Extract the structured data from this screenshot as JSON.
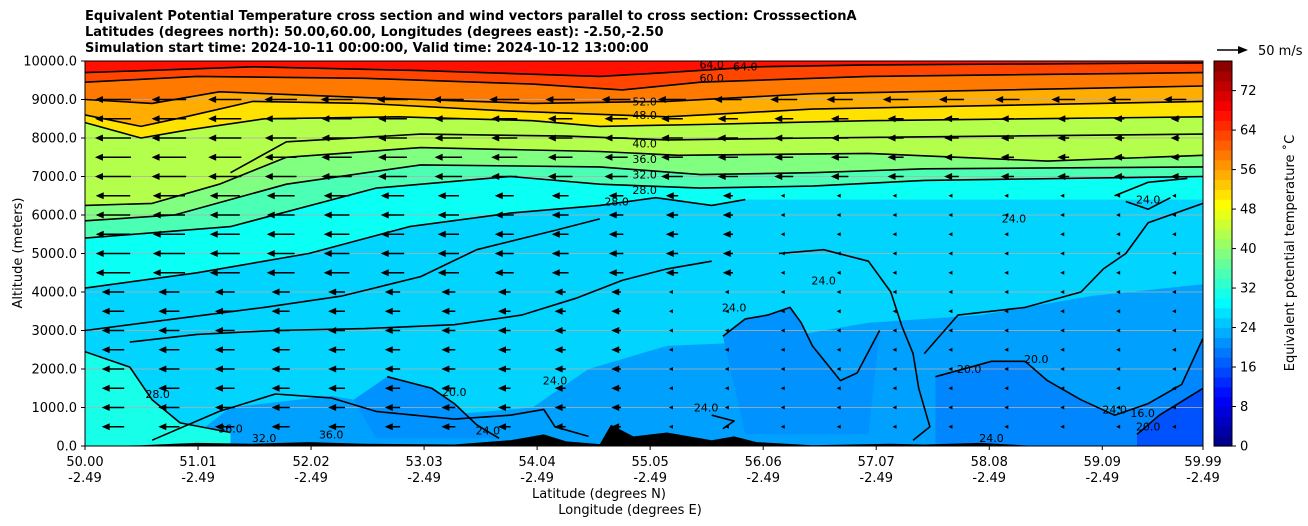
{
  "title_lines": [
    "Equivalent Potential Temperature cross section and wind vectors parallel to cross section: CrosssectionA",
    "Latitudes (degrees north): 50.00,60.00, Longitudes (degrees east): -2.50,-2.50",
    "Simulation start time: 2024-10-11 00:00:00, Valid time: 2024-10-12 13:00:00"
  ],
  "chart_data": {
    "type": "heatmap",
    "subtype": "filled contour cross-section with contour lines and wind vectors",
    "ylabel": "Altitude (meters)",
    "xlabel_lines": [
      "Latitude (degrees N)",
      "Longitude (degrees E)"
    ],
    "ylim": [
      0,
      10000
    ],
    "xlim": [
      50.0,
      59.99
    ],
    "y_ticks": [
      0,
      1000,
      2000,
      3000,
      4000,
      5000,
      6000,
      7000,
      8000,
      9000,
      10000
    ],
    "y_tick_labels": [
      "0.0",
      "1000.0",
      "2000.0",
      "3000.0",
      "4000.0",
      "5000.0",
      "6000.0",
      "7000.0",
      "8000.0",
      "9000.0",
      "10000.0"
    ],
    "x_ticks": [
      50.0,
      51.01,
      52.02,
      53.03,
      54.04,
      55.05,
      56.06,
      57.07,
      58.08,
      59.09,
      59.99
    ],
    "x_tick_labels": [
      "50.00",
      "51.01",
      "52.02",
      "53.03",
      "54.04",
      "55.05",
      "56.06",
      "57.07",
      "58.08",
      "59.09",
      "59.99"
    ],
    "x_tick_labels_lon": [
      "-2.49",
      "-2.49",
      "-2.49",
      "-2.49",
      "-2.49",
      "-2.49",
      "-2.49",
      "-2.49",
      "-2.49",
      "-2.49",
      "-2.49"
    ],
    "grid": "horizontal lines at y ticks",
    "colorbar": {
      "label": "Equivalent potential temperature ˚C",
      "min": 0,
      "max": 78,
      "ticks": [
        0,
        8,
        16,
        24,
        32,
        40,
        48,
        56,
        64,
        72
      ],
      "colormap": "jet"
    },
    "wind_key": {
      "label": "50 m/s",
      "value": 50
    },
    "contour_labels": [
      "64.0",
      "64.0",
      "60.0",
      "52.0",
      "48.0",
      "40.0",
      "36.0",
      "32.0",
      "28.0",
      "28.0",
      "28.0",
      "24.0",
      "24.0",
      "24.0",
      "24.0",
      "20.0",
      "20.0",
      "20.0",
      "24.0",
      "16.0",
      "24.0",
      "24.0",
      "36.0",
      "36.0",
      "32.0",
      "24.0",
      "24.0",
      "20.0"
    ],
    "contour_lines": [
      {
        "level": 64,
        "points": [
          [
            50,
            9.7
          ],
          [
            51.5,
            9.85
          ],
          [
            53,
            9.75
          ],
          [
            54.6,
            9.6
          ],
          [
            55.2,
            9.7
          ],
          [
            56,
            9.85
          ],
          [
            57,
            9.9
          ],
          [
            59.99,
            9.95
          ]
        ]
      },
      {
        "level": 60,
        "points": [
          [
            50,
            9.45
          ],
          [
            51,
            9.6
          ],
          [
            52.5,
            9.55
          ],
          [
            54,
            9.4
          ],
          [
            54.8,
            9.25
          ],
          [
            55.5,
            9.45
          ],
          [
            57,
            9.6
          ],
          [
            59.99,
            9.7
          ]
        ]
      },
      {
        "level": 56,
        "points": [
          [
            50,
            9.0
          ],
          [
            50.6,
            8.9
          ],
          [
            51.2,
            9.2
          ],
          [
            52.5,
            9.05
          ],
          [
            54,
            8.9
          ],
          [
            55.2,
            8.95
          ],
          [
            56.5,
            9.15
          ],
          [
            59.99,
            9.35
          ]
        ]
      },
      {
        "level": 52,
        "points": [
          [
            50,
            8.6
          ],
          [
            50.5,
            8.3
          ],
          [
            50.9,
            8.55
          ],
          [
            51.5,
            8.95
          ],
          [
            52.5,
            8.9
          ],
          [
            53.8,
            8.7
          ],
          [
            55.2,
            8.55
          ],
          [
            56.5,
            8.75
          ],
          [
            59.99,
            8.95
          ]
        ]
      },
      {
        "level": 48,
        "points": [
          [
            50,
            8.4
          ],
          [
            50.5,
            8.0
          ],
          [
            50.9,
            8.2
          ],
          [
            51.6,
            8.5
          ],
          [
            52.8,
            8.55
          ],
          [
            54,
            8.45
          ],
          [
            54.6,
            8.3
          ],
          [
            55.5,
            8.35
          ],
          [
            57,
            8.45
          ],
          [
            59.99,
            8.55
          ]
        ]
      },
      {
        "level": 44,
        "points": [
          [
            51.3,
            7.1
          ],
          [
            51.8,
            7.9
          ],
          [
            53,
            8.1
          ],
          [
            54.3,
            8.05
          ],
          [
            55.2,
            7.95
          ],
          [
            56.5,
            8.0
          ],
          [
            59.99,
            8.1
          ]
        ]
      },
      {
        "level": 40,
        "points": [
          [
            50,
            6.25
          ],
          [
            50.6,
            6.3
          ],
          [
            51.2,
            6.8
          ],
          [
            51.8,
            7.5
          ],
          [
            53,
            7.75
          ],
          [
            54.6,
            7.65
          ],
          [
            55.3,
            7.55
          ],
          [
            57,
            7.6
          ],
          [
            58.6,
            7.4
          ],
          [
            59.99,
            7.55
          ]
        ]
      },
      {
        "level": 36,
        "points": [
          [
            50,
            5.85
          ],
          [
            50.8,
            6.0
          ],
          [
            51.8,
            6.8
          ],
          [
            53,
            7.3
          ],
          [
            54.6,
            7.25
          ],
          [
            55.5,
            7.05
          ],
          [
            56.5,
            7.1
          ],
          [
            57.5,
            7.2
          ],
          [
            59.99,
            7.25
          ]
        ]
      },
      {
        "level": 32,
        "points": [
          [
            50,
            5.4
          ],
          [
            51.3,
            5.7
          ],
          [
            52.6,
            6.7
          ],
          [
            53.8,
            7.0
          ],
          [
            54.6,
            6.8
          ],
          [
            55.5,
            6.7
          ],
          [
            56.5,
            6.75
          ],
          [
            57.5,
            6.9
          ],
          [
            59.99,
            7.0
          ]
        ]
      },
      {
        "level": 28,
        "points": [
          [
            50,
            4.1
          ],
          [
            51,
            4.5
          ],
          [
            52,
            5.0
          ],
          [
            52.9,
            5.7
          ],
          [
            53.8,
            6.05
          ],
          [
            54.6,
            6.25
          ],
          [
            55.1,
            6.45
          ],
          [
            55.6,
            6.25
          ],
          [
            55.9,
            6.4
          ]
        ]
      },
      {
        "level": 28,
        "points": [
          [
            50,
            3.0
          ],
          [
            50.8,
            3.3
          ],
          [
            51.6,
            3.6
          ],
          [
            52.3,
            3.9
          ],
          [
            53,
            4.4
          ],
          [
            53.5,
            5.1
          ],
          [
            54.2,
            5.6
          ],
          [
            54.6,
            5.9
          ]
        ]
      },
      {
        "level": 28,
        "points": [
          [
            50,
            2.45
          ],
          [
            50.4,
            2.05
          ],
          [
            50.6,
            1.2
          ],
          [
            50.85,
            0.6
          ],
          [
            51.3,
            0.35
          ]
        ]
      },
      {
        "level": 28,
        "points": [
          [
            50.4,
            2.7
          ],
          [
            51,
            2.9
          ],
          [
            51.7,
            3.0
          ],
          [
            52.5,
            3.05
          ],
          [
            53.3,
            3.15
          ],
          [
            53.9,
            3.4
          ],
          [
            54.4,
            3.85
          ],
          [
            54.8,
            4.3
          ],
          [
            55.2,
            4.6
          ],
          [
            55.6,
            4.8
          ]
        ]
      },
      {
        "level": 24,
        "points": [
          [
            50.6,
            0.15
          ],
          [
            51.2,
            0.9
          ],
          [
            51.7,
            1.35
          ],
          [
            52.2,
            1.25
          ],
          [
            52.6,
            0.9
          ],
          [
            53.3,
            0.7
          ],
          [
            53.8,
            0.8
          ],
          [
            54.1,
            0.95
          ],
          [
            54.2,
            0.5
          ],
          [
            54.5,
            0.25
          ]
        ]
      },
      {
        "level": 24,
        "points": [
          [
            55.6,
            0.8
          ],
          [
            55.8,
            0.65
          ],
          [
            55.7,
            0.45
          ]
        ]
      },
      {
        "level": 24,
        "points": [
          [
            55.7,
            2.85
          ],
          [
            55.9,
            3.3
          ],
          [
            56.1,
            3.4
          ],
          [
            56.3,
            3.6
          ],
          [
            56.4,
            3.2
          ],
          [
            56.5,
            2.6
          ],
          [
            56.75,
            1.7
          ],
          [
            56.9,
            1.9
          ],
          [
            57.1,
            3.0
          ]
        ]
      },
      {
        "level": 24,
        "points": [
          [
            56.2,
            5.0
          ],
          [
            56.6,
            5.1
          ],
          [
            57.0,
            4.8
          ],
          [
            57.2,
            4.0
          ],
          [
            57.3,
            3.1
          ],
          [
            57.4,
            2.4
          ],
          [
            57.45,
            1.5
          ],
          [
            57.55,
            0.5
          ],
          [
            57.4,
            0.15
          ]
        ]
      },
      {
        "level": 24,
        "points": [
          [
            57.5,
            2.4
          ],
          [
            57.8,
            3.4
          ],
          [
            58.4,
            3.6
          ],
          [
            58.9,
            4.0
          ],
          [
            59.1,
            4.6
          ],
          [
            59.3,
            5.0
          ],
          [
            59.5,
            5.8
          ],
          [
            59.99,
            6.3
          ]
        ]
      },
      {
        "level": 24,
        "points": [
          [
            59.2,
            6.5
          ],
          [
            59.5,
            6.85
          ],
          [
            59.85,
            6.95
          ]
        ]
      },
      {
        "level": 24,
        "points": [
          [
            59.3,
            6.35
          ],
          [
            59.5,
            6.15
          ],
          [
            59.7,
            6.45
          ]
        ]
      },
      {
        "level": 20,
        "points": [
          [
            52.7,
            1.8
          ],
          [
            53.1,
            1.5
          ],
          [
            53.3,
            1.1
          ],
          [
            53.5,
            0.55
          ],
          [
            53.7,
            0.2
          ]
        ]
      },
      {
        "level": 20,
        "points": [
          [
            57.6,
            1.8
          ],
          [
            58.1,
            2.2
          ],
          [
            58.4,
            2.2
          ],
          [
            58.6,
            1.7
          ],
          [
            58.9,
            1.2
          ],
          [
            59.2,
            0.8
          ],
          [
            59.5,
            1.1
          ],
          [
            59.8,
            1.6
          ],
          [
            59.99,
            2.8
          ]
        ]
      },
      {
        "level": 16,
        "points": [
          [
            59.4,
            0.3
          ],
          [
            59.6,
            0.8
          ],
          [
            59.99,
            1.5
          ]
        ]
      }
    ],
    "terrain": [
      [
        50,
        0
      ],
      [
        50.2,
        0
      ],
      [
        50.5,
        0.02
      ],
      [
        50.8,
        0.06
      ],
      [
        51,
        0.08
      ],
      [
        51.5,
        0.06
      ],
      [
        52,
        0.1
      ],
      [
        52.5,
        0.06
      ],
      [
        53.3,
        0.04
      ],
      [
        53.8,
        0.15
      ],
      [
        54.1,
        0.3
      ],
      [
        54.3,
        0.12
      ],
      [
        54.6,
        0.05
      ],
      [
        54.7,
        0.55
      ],
      [
        54.9,
        0.25
      ],
      [
        55.2,
        0.35
      ],
      [
        55.6,
        0.15
      ],
      [
        55.8,
        0.25
      ],
      [
        56,
        0.1
      ],
      [
        56.5,
        0.02
      ],
      [
        57.2,
        0.06
      ],
      [
        57.5,
        0.04
      ],
      [
        58,
        0.08
      ],
      [
        58.5,
        0
      ],
      [
        59.99,
        0
      ]
    ]
  }
}
